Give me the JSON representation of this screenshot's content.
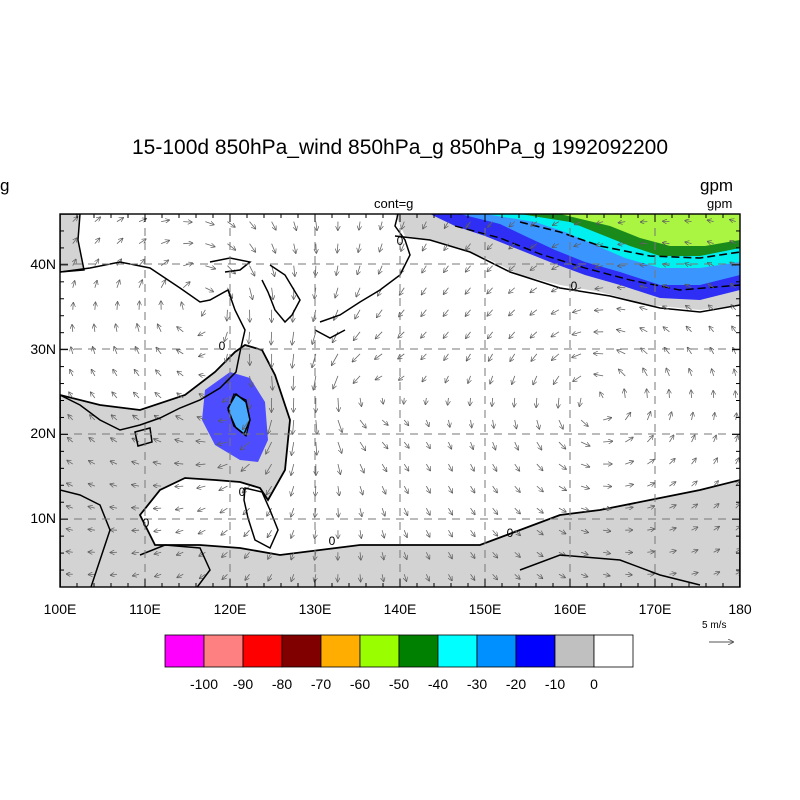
{
  "title": "15-100d 850hPa_wind 850hPa_g 850hPa_g 1992092200",
  "left_fragment": "g",
  "units_main": "gpm",
  "units_sub": "gpm",
  "contour_label": "cont=g",
  "map": {
    "lon_range": [
      100,
      180
    ],
    "lat_range": [
      2,
      46
    ],
    "lon_ticks": [
      "100E",
      "110E",
      "120E",
      "130E",
      "140E",
      "150E",
      "160E",
      "170E",
      "180"
    ],
    "lat_ticks": [
      "10N",
      "20N",
      "30N",
      "40N"
    ],
    "lat_tick_values": [
      10,
      20,
      30,
      40
    ],
    "zero_contour_labels": [
      "0",
      "0",
      "0",
      "0",
      "0",
      "0",
      "0"
    ]
  },
  "vector_reference": {
    "label": "5 m/s"
  },
  "colorbar": {
    "colors": [
      "#ff00ff",
      "#ff8080",
      "#ff0000",
      "#800000",
      "#ffad00",
      "#99ff00",
      "#008000",
      "#00ffff",
      "#0090ff",
      "#0000ff",
      "#c0c0c0",
      "#ffffff"
    ],
    "labels": [
      "-100",
      "-90",
      "-80",
      "-70",
      "-60",
      "-50",
      "-40",
      "-30",
      "-20",
      "-10",
      "0"
    ]
  },
  "colors": {
    "land_neg": "#d3d3d3",
    "shade_minus10": "#5050ff",
    "shade_minus20": "#4aa8ff"
  }
}
